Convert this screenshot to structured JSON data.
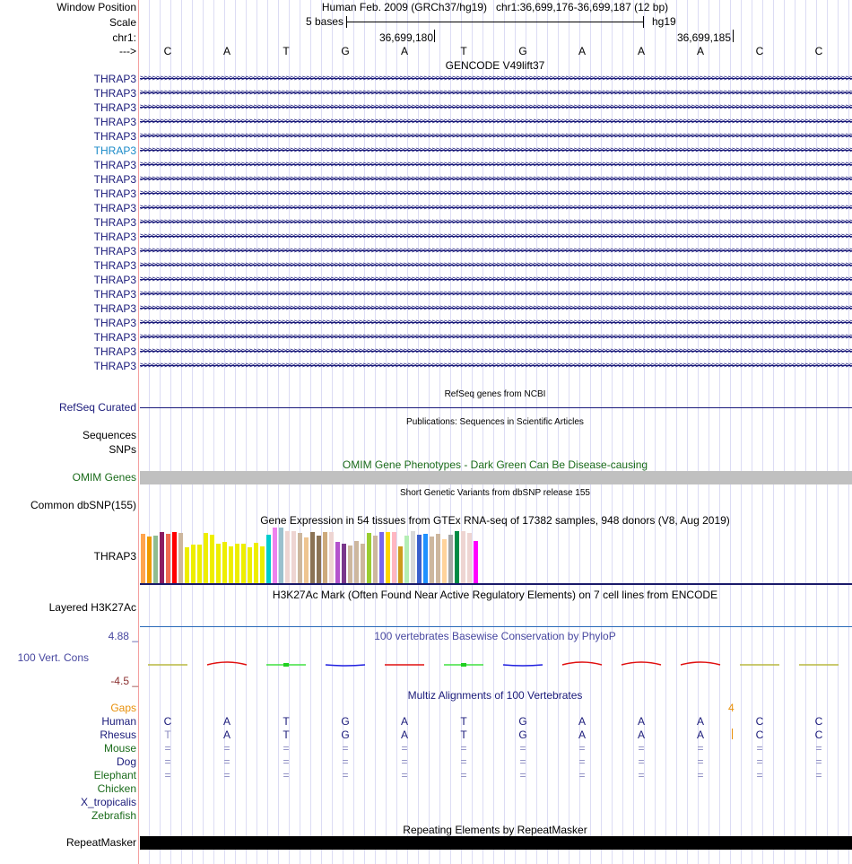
{
  "header": {
    "labels": {
      "window_position": "Window Position",
      "scale": "Scale",
      "chrom": "chr1:",
      "strand": "--->"
    },
    "title": "Human Feb. 2009 (GRCh37/hg19)   chr1:36,699,176-36,699,187 (12 bp)",
    "scale_label": "5 bases",
    "assembly": "hg19",
    "ticks": [
      "36,699,180",
      "36,699,185"
    ],
    "bases": [
      "C",
      "A",
      "T",
      "G",
      "A",
      "T",
      "G",
      "A",
      "A",
      "A",
      "C",
      "C"
    ]
  },
  "gencode": {
    "title": "GENCODE V49lift37",
    "gene": "THRAP3",
    "rows": 21,
    "highlight_row": 5
  },
  "refseq": {
    "title": "RefSeq genes from NCBI",
    "label": "RefSeq Curated"
  },
  "publications": {
    "title": "Publications: Sequences in Scientific Articles",
    "labels": [
      "Sequences",
      "SNPs"
    ]
  },
  "omim": {
    "title": "OMIM Gene Phenotypes - Dark Green Can Be Disease-causing",
    "label": "OMIM Genes"
  },
  "dbsnp": {
    "title": "Short Genetic Variants from dbSNP release 155",
    "label": "Common dbSNP(155)"
  },
  "gtex": {
    "title": "Gene Expression in 54 tissues from GTEx RNA-seq of 17382 samples, 948 donors (V8, Aug 2019)",
    "label": "THRAP3"
  },
  "h3k27ac": {
    "title": "H3K27Ac Mark (Often Found Near Active Regulatory Elements) on 7 cell lines from ENCODE",
    "label": "Layered H3K27Ac"
  },
  "phylop": {
    "title": "100 vertebrates Basewise Conservation by PhyloP",
    "label": "100 Vert. Cons",
    "max": "4.88 _",
    "min": "-4.5 _",
    "values": [
      -0.3,
      0.6,
      0.3,
      -0.5,
      0.4,
      0.3,
      -0.6,
      0.6,
      0.6,
      0.6,
      -0.4,
      -0.3
    ],
    "colors": [
      "#b8b840",
      "#e01010",
      "#40e040",
      "#2020e0",
      "#e01010",
      "#40e040",
      "#2020e0",
      "#e01010",
      "#e01010",
      "#e01010",
      "#b8b840",
      "#b8b840"
    ]
  },
  "multiz": {
    "title": "Multiz Alignments of 100 Vertebrates",
    "gaps_label": "Gaps",
    "gap_count": "4",
    "species": [
      {
        "name": "Human",
        "color": "#1a1a7a",
        "seq": [
          "C",
          "A",
          "T",
          "G",
          "A",
          "T",
          "G",
          "A",
          "A",
          "A",
          "C",
          "C"
        ]
      },
      {
        "name": "Rhesus",
        "color": "#1a1a7a",
        "seq": [
          "T",
          "A",
          "T",
          "G",
          "A",
          "T",
          "G",
          "A",
          "A",
          "A",
          "C",
          "C"
        ]
      },
      {
        "name": "Mouse",
        "color": "#1a6b1a",
        "seq": [
          "=",
          "=",
          "=",
          "=",
          "=",
          "=",
          "=",
          "=",
          "=",
          "=",
          "=",
          "="
        ]
      },
      {
        "name": "Dog",
        "color": "#1a1a7a",
        "seq": [
          "=",
          "=",
          "=",
          "=",
          "=",
          "=",
          "=",
          "=",
          "=",
          "=",
          "=",
          "="
        ]
      },
      {
        "name": "Elephant",
        "color": "#1a6b1a",
        "seq": [
          "=",
          "=",
          "=",
          "=",
          "=",
          "=",
          "=",
          "=",
          "=",
          "=",
          "=",
          "="
        ]
      },
      {
        "name": "Chicken",
        "color": "#1a6b1a",
        "seq": []
      },
      {
        "name": "X_tropicalis",
        "color": "#1a1a7a",
        "seq": []
      },
      {
        "name": "Zebrafish",
        "color": "#1a6b1a",
        "seq": []
      }
    ]
  },
  "repeatmasker": {
    "title": "Repeating Elements by RepeatMasker",
    "label": "RepeatMasker"
  },
  "chart_data": {
    "type": "bar",
    "title": "Gene Expression in 54 tissues from GTEx RNA-seq of 17382 samples, 948 donors (V8, Aug 2019)",
    "ylim": [
      0,
      190
    ],
    "values": [
      165,
      157,
      160,
      172,
      166,
      172,
      168,
      120,
      130,
      130,
      169,
      163,
      133,
      138,
      123,
      133,
      133,
      120,
      135,
      123,
      163,
      187,
      187,
      174,
      174,
      168,
      153,
      172,
      160,
      172,
      172,
      138,
      133,
      126,
      141,
      133,
      169,
      160,
      172,
      172,
      172,
      123,
      160,
      174,
      163,
      165,
      157,
      165,
      148,
      163,
      174,
      174,
      168,
      141
    ],
    "colors": [
      "#FFA54F",
      "#EE9A00",
      "#8FBC8F",
      "#8B1C62",
      "#EE6A50",
      "#FF0000",
      "#CDB79E",
      "#EEEE00",
      "#EEEE00",
      "#EEEE00",
      "#EEEE00",
      "#EEEE00",
      "#EEEE00",
      "#EEEE00",
      "#EEEE00",
      "#EEEE00",
      "#EEEE00",
      "#EEEE00",
      "#EEEE00",
      "#EEEE00",
      "#00CDCD",
      "#EE82EE",
      "#9AC0CD",
      "#EED5D2",
      "#EED5D2",
      "#CDB79E",
      "#EEC591",
      "#8B7355",
      "#8B7355",
      "#CDAA7D",
      "#EED5D2",
      "#B452CD",
      "#7A378B",
      "#CDB79E",
      "#CDB79E",
      "#CDB79E",
      "#9ACD32",
      "#CDB79E",
      "#7A67EE",
      "#FFD700",
      "#FFB6C1",
      "#CD9B1D",
      "#B4EEB4",
      "#D9D9D9",
      "#3A5FCD",
      "#1E90FF",
      "#CDB79E",
      "#CDB79E",
      "#FFD39B",
      "#A6A6A6",
      "#008B45",
      "#EED5D2",
      "#EED5D2",
      "#FF00FF"
    ]
  }
}
